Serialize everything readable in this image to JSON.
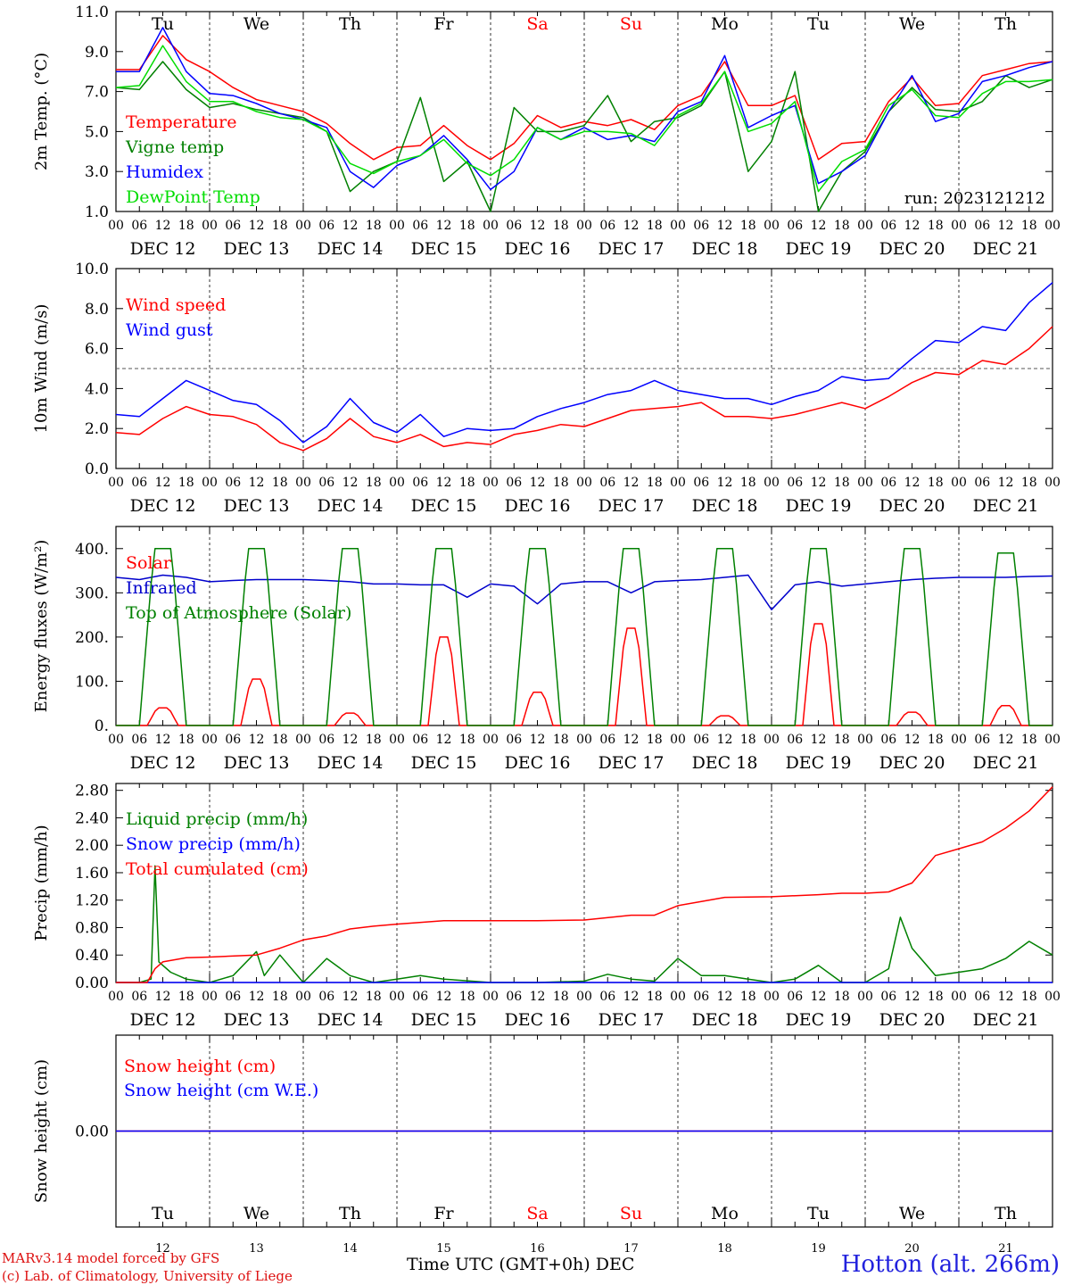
{
  "chart_data": [
    {
      "type": "line",
      "ylabel": "2m Temp. (°C)",
      "ylim": [
        1.0,
        11.0
      ],
      "yticks": [
        "1.0",
        "3.0",
        "5.0",
        "7.0",
        "9.0",
        "11.0"
      ],
      "ytick_values": [
        1,
        3,
        5,
        7,
        9,
        11
      ],
      "top_weekdays": true,
      "annotation": "run: 2023121212",
      "x_hours": [
        0,
        6,
        12,
        18,
        24,
        30,
        36,
        42,
        48,
        54,
        60,
        66,
        72,
        78,
        84,
        90,
        96,
        102,
        108,
        114,
        120,
        126,
        132,
        138,
        144,
        150,
        156,
        162,
        168,
        174,
        180,
        186,
        192,
        198,
        204,
        210,
        216,
        222,
        228,
        234,
        240
      ],
      "series": [
        {
          "name": "Temperature",
          "color": "#ff0000",
          "values": [
            8.1,
            8.1,
            9.8,
            8.6,
            8.0,
            7.2,
            6.6,
            6.3,
            6.0,
            5.4,
            4.4,
            3.6,
            4.2,
            4.3,
            5.3,
            4.3,
            3.6,
            4.4,
            5.8,
            5.2,
            5.5,
            5.3,
            5.6,
            5.1,
            6.3,
            6.8,
            8.5,
            6.3,
            6.3,
            6.8,
            3.6,
            4.4,
            4.5,
            6.5,
            7.7,
            6.3,
            6.4,
            7.8,
            8.1,
            8.4,
            8.5
          ]
        },
        {
          "name": "Vigne temp",
          "color": "#008000",
          "values": [
            7.2,
            7.1,
            8.5,
            7.1,
            6.2,
            6.4,
            6.1,
            5.9,
            5.7,
            5.0,
            2.0,
            3.0,
            3.5,
            6.7,
            2.5,
            3.5,
            1.0,
            6.2,
            5.0,
            5.0,
            5.3,
            6.8,
            4.5,
            5.5,
            5.7,
            6.3,
            8.0,
            3.0,
            4.5,
            8.0,
            1.0,
            3.0,
            4.0,
            6.0,
            7.2,
            6.1,
            6.0,
            6.5,
            7.8,
            7.2,
            7.6
          ]
        },
        {
          "name": "Humidex",
          "color": "#0000ff",
          "values": [
            8.0,
            8.0,
            10.2,
            8.0,
            6.9,
            6.8,
            6.4,
            5.9,
            5.6,
            5.2,
            3.0,
            2.2,
            3.3,
            3.8,
            4.8,
            3.6,
            2.1,
            3.0,
            5.2,
            4.6,
            5.2,
            4.6,
            4.8,
            4.5,
            6.0,
            6.5,
            8.8,
            5.2,
            5.8,
            6.3,
            2.4,
            3.0,
            3.8,
            6.0,
            7.8,
            5.5,
            5.9,
            7.5,
            7.8,
            8.2,
            8.5
          ]
        },
        {
          "name": "DewPoint Temp",
          "color": "#00dd00",
          "values": [
            7.2,
            7.3,
            9.3,
            7.5,
            6.5,
            6.5,
            6.0,
            5.7,
            5.6,
            5.0,
            3.4,
            2.9,
            3.5,
            3.8,
            4.6,
            3.4,
            2.8,
            3.6,
            5.2,
            4.6,
            5.0,
            5.0,
            4.9,
            4.3,
            5.8,
            6.4,
            8.0,
            5.0,
            5.4,
            6.5,
            2.0,
            3.5,
            4.1,
            6.3,
            7.1,
            5.8,
            5.7,
            6.9,
            7.5,
            7.5,
            7.6
          ]
        }
      ]
    },
    {
      "type": "line",
      "ylabel": "10m Wind (m/s)",
      "ylim": [
        0.0,
        10.0
      ],
      "yticks": [
        "0.0",
        "2.0",
        "4.0",
        "6.0",
        "8.0",
        "10.0"
      ],
      "ytick_values": [
        0,
        2,
        4,
        6,
        8,
        10
      ],
      "hline": 5.0,
      "x_hours": [
        0,
        6,
        12,
        18,
        24,
        30,
        36,
        42,
        48,
        54,
        60,
        66,
        72,
        78,
        84,
        90,
        96,
        102,
        108,
        114,
        120,
        126,
        132,
        138,
        144,
        150,
        156,
        162,
        168,
        174,
        180,
        186,
        192,
        198,
        204,
        210,
        216,
        222,
        228,
        234,
        240
      ],
      "series": [
        {
          "name": "Wind speed",
          "color": "#ff0000",
          "values": [
            1.8,
            1.7,
            2.5,
            3.1,
            2.7,
            2.6,
            2.2,
            1.3,
            0.9,
            1.5,
            2.5,
            1.6,
            1.3,
            1.7,
            1.1,
            1.3,
            1.2,
            1.7,
            1.9,
            2.2,
            2.1,
            2.5,
            2.9,
            3.0,
            3.1,
            3.3,
            2.6,
            2.6,
            2.5,
            2.7,
            3.0,
            3.3,
            3.0,
            3.6,
            4.3,
            4.8,
            4.7,
            5.4,
            5.2,
            6.0,
            7.1
          ]
        },
        {
          "name": "Wind gust",
          "color": "#0000ff",
          "values": [
            2.7,
            2.6,
            3.5,
            4.4,
            3.9,
            3.4,
            3.2,
            2.4,
            1.3,
            2.1,
            3.5,
            2.3,
            1.8,
            2.7,
            1.6,
            2.0,
            1.9,
            2.0,
            2.6,
            3.0,
            3.3,
            3.7,
            3.9,
            4.4,
            3.9,
            3.7,
            3.5,
            3.5,
            3.2,
            3.6,
            3.9,
            4.6,
            4.4,
            4.5,
            5.5,
            6.4,
            6.3,
            7.1,
            6.9,
            8.3,
            9.3
          ]
        }
      ]
    },
    {
      "type": "line",
      "ylabel": "Energy fluxes (W/m²)",
      "ylim": [
        0,
        450
      ],
      "yticks": [
        "0.",
        "100.",
        "200.",
        "300.",
        "400."
      ],
      "ytick_values": [
        0,
        100,
        200,
        300,
        400
      ],
      "series": [
        {
          "name": "Solar",
          "color": "#ff0000",
          "peaks": [
            40,
            105,
            28,
            200,
            75,
            220,
            22,
            230,
            30,
            45
          ]
        },
        {
          "name": "Infrared",
          "color": "#0000cc",
          "x_hours": [
            0,
            6,
            12,
            18,
            24,
            30,
            36,
            42,
            48,
            54,
            60,
            66,
            72,
            78,
            84,
            90,
            96,
            102,
            108,
            114,
            120,
            126,
            132,
            138,
            144,
            150,
            156,
            162,
            168,
            174,
            180,
            186,
            192,
            198,
            204,
            210,
            216,
            222,
            228,
            234,
            240
          ],
          "values": [
            335,
            330,
            340,
            335,
            325,
            328,
            330,
            330,
            330,
            328,
            325,
            320,
            320,
            318,
            318,
            290,
            320,
            315,
            275,
            320,
            325,
            325,
            300,
            325,
            328,
            330,
            335,
            340,
            262,
            318,
            325,
            315,
            320,
            325,
            330,
            333,
            335,
            335,
            335,
            337,
            338
          ]
        },
        {
          "name": "Top of Atmosphere (Solar)",
          "color": "#008000",
          "peaks": [
            400,
            400,
            400,
            400,
            400,
            400,
            400,
            400,
            400,
            390
          ]
        }
      ]
    },
    {
      "type": "line",
      "ylabel": "Precip (mm/h)",
      "ylim": [
        0.0,
        2.9
      ],
      "yticks": [
        "0.00",
        "0.40",
        "0.80",
        "1.20",
        "1.60",
        "2.00",
        "2.40",
        "2.80"
      ],
      "ytick_values": [
        0,
        0.4,
        0.8,
        1.2,
        1.6,
        2.0,
        2.4,
        2.8
      ],
      "series": [
        {
          "name": "Liquid precip (mm/h)",
          "color": "#008000",
          "x_hours": [
            0,
            6,
            9,
            10,
            11,
            14,
            18,
            24,
            30,
            36,
            38,
            42,
            48,
            54,
            60,
            66,
            72,
            78,
            84,
            96,
            108,
            120,
            126,
            132,
            138,
            144,
            150,
            156,
            162,
            168,
            174,
            180,
            186,
            192,
            198,
            201,
            204,
            210,
            216,
            222,
            228,
            234,
            240
          ],
          "values": [
            0,
            0,
            0.05,
            1.7,
            0.3,
            0.15,
            0.05,
            0,
            0.1,
            0.45,
            0.1,
            0.4,
            0,
            0.35,
            0.1,
            0,
            0.05,
            0.1,
            0.05,
            0,
            0,
            0.02,
            0.12,
            0.05,
            0.02,
            0.35,
            0.1,
            0.1,
            0.05,
            0,
            0.05,
            0.25,
            0,
            0,
            0.2,
            0.95,
            0.5,
            0.1,
            0.15,
            0.2,
            0.35,
            0.6,
            0.4
          ]
        },
        {
          "name": "Snow precip (mm/h)",
          "color": "#0000ff",
          "values": [
            0,
            0
          ]
        },
        {
          "name": "Total cumulated (cm)",
          "color": "#ff0000",
          "x_hours": [
            0,
            8,
            10,
            12,
            18,
            24,
            36,
            42,
            48,
            54,
            60,
            66,
            72,
            84,
            96,
            108,
            120,
            132,
            138,
            144,
            150,
            156,
            168,
            180,
            186,
            192,
            198,
            204,
            210,
            216,
            222,
            228,
            234,
            240
          ],
          "values": [
            0,
            0,
            0.2,
            0.3,
            0.36,
            0.37,
            0.4,
            0.5,
            0.62,
            0.68,
            0.78,
            0.82,
            0.85,
            0.9,
            0.9,
            0.9,
            0.91,
            0.98,
            0.98,
            1.12,
            1.18,
            1.24,
            1.25,
            1.28,
            1.3,
            1.3,
            1.32,
            1.45,
            1.85,
            1.95,
            2.05,
            2.25,
            2.5,
            2.85
          ]
        }
      ]
    },
    {
      "type": "line",
      "ylabel": "Snow height (cm)",
      "ylim": [
        -1,
        1
      ],
      "yticks": [
        "0.00"
      ],
      "ytick_values": [
        0
      ],
      "series": [
        {
          "name": "Snow height (cm)",
          "color": "#ff0000",
          "values": [
            0,
            0
          ]
        },
        {
          "name": "Snow height (cm W.E.)",
          "color": "#0000ff",
          "values": [
            0,
            0
          ]
        }
      ]
    }
  ],
  "axis": {
    "hour_labels": [
      "00",
      "06",
      "12",
      "18"
    ],
    "final_hour_label": "00",
    "day_labels": [
      "DEC 12",
      "DEC 13",
      "DEC 14",
      "DEC 15",
      "DEC 16",
      "DEC 17",
      "DEC 18",
      "DEC 19",
      "DEC 20",
      "DEC 21"
    ],
    "weekdays": [
      "Tu",
      "We",
      "Th",
      "Fr",
      "Sa",
      "Su",
      "Mo",
      "Tu",
      "We",
      "Th"
    ],
    "weekend_flags": [
      false,
      false,
      false,
      false,
      true,
      true,
      false,
      false,
      false,
      false
    ],
    "day_numbers": [
      "12",
      "13",
      "14",
      "15",
      "16",
      "17",
      "18",
      "19",
      "20",
      "21"
    ],
    "xlabel": "Time UTC (GMT+0h)",
    "month": "DEC"
  },
  "colors": {
    "weekend": "#ff0000",
    "weekday": "#000000",
    "frame": "#000000"
  },
  "footer": {
    "model_line": "MARv3.14 model forced by GFS",
    "credit_line": "(c) Lab. of Climatology, University of Liege",
    "station": "Hotton (alt. 266m)"
  }
}
